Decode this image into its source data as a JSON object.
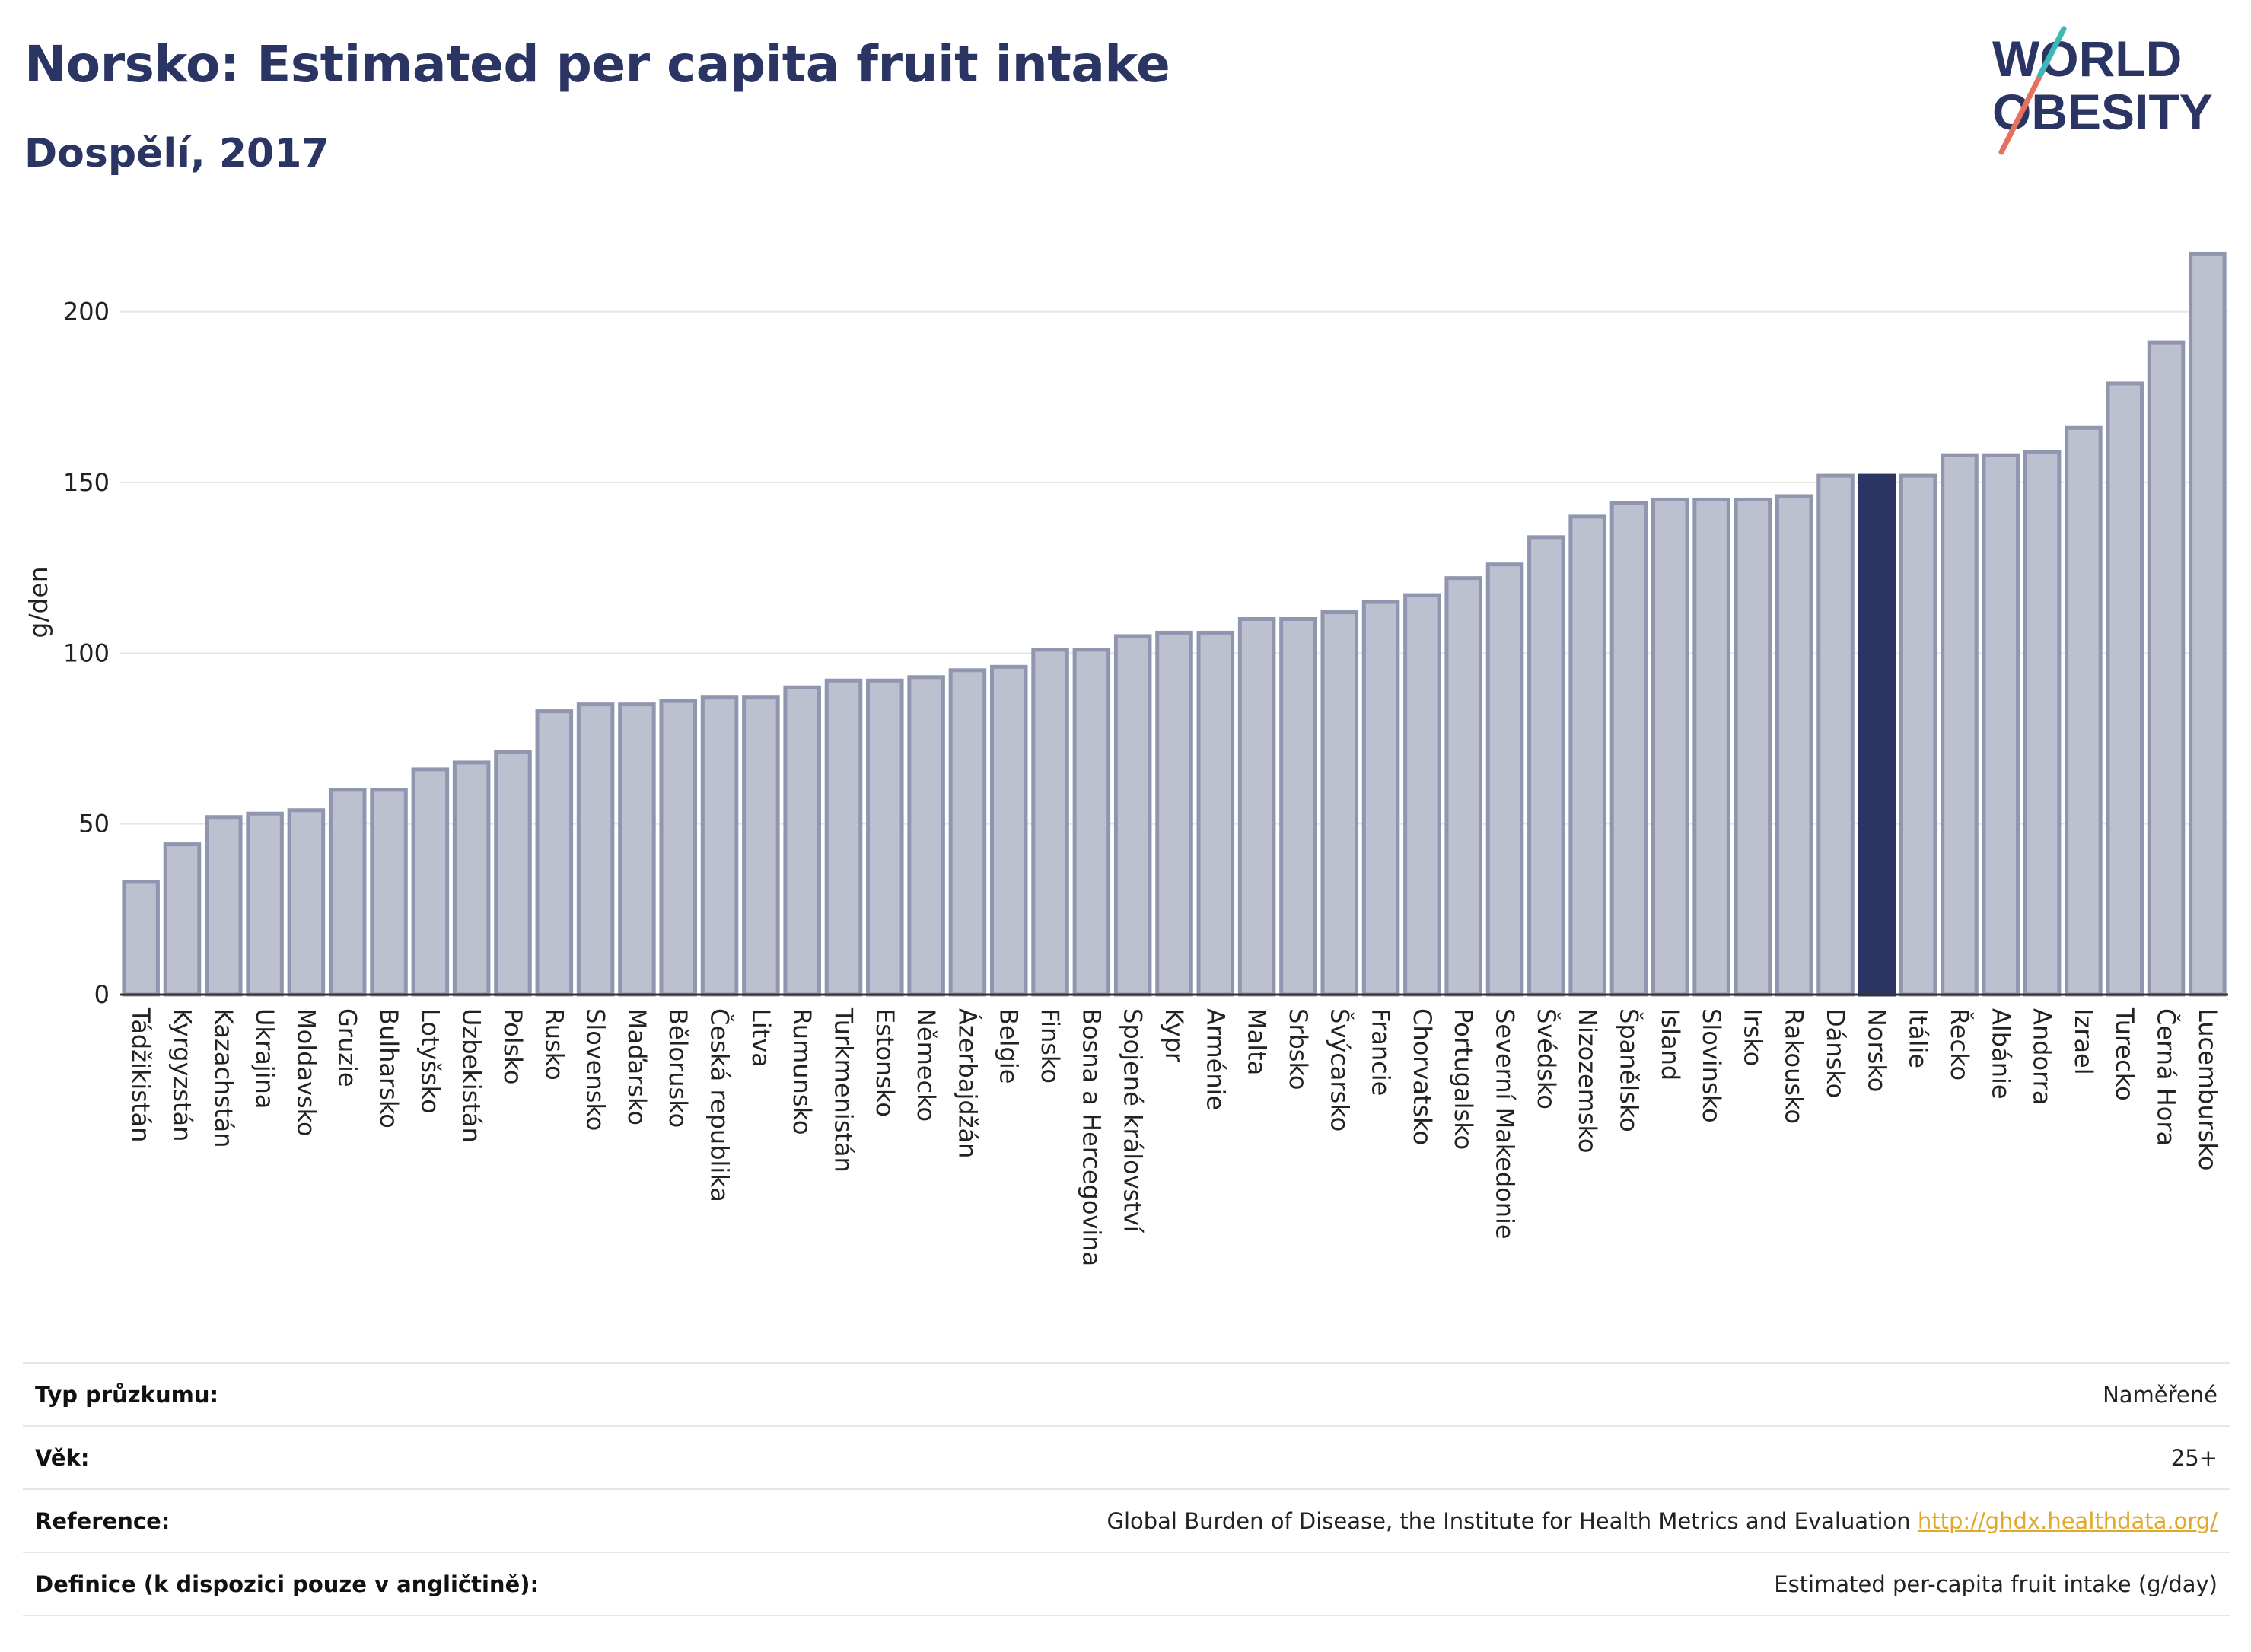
{
  "header": {
    "title": "Norsko: Estimated per capita fruit intake",
    "subtitle": "Dospělí, 2017"
  },
  "logo": {
    "line1": "WORLD",
    "line2": "OBESITY",
    "letter_o": "O"
  },
  "chart_data": {
    "type": "bar",
    "title": "Norsko: Estimated per capita fruit intake",
    "subtitle": "Dospělí, 2017",
    "xlabel": "",
    "ylabel": "g/den",
    "ylim": [
      0,
      220
    ],
    "yticks": [
      0,
      50,
      100,
      150,
      200
    ],
    "grid": true,
    "highlight": "Norsko",
    "colors": {
      "bar": "#bcc0cf",
      "bar_border": "#9096b0",
      "highlight": "#2a3563",
      "grid": "#e6e6e6",
      "axis": "#333333"
    },
    "categories": [
      "Tádžikistán",
      "Kyrgyzstán",
      "Kazachstán",
      "Ukrajina",
      "Moldavsko",
      "Gruzie",
      "Bulharsko",
      "Lotyšsko",
      "Uzbekistán",
      "Polsko",
      "Rusko",
      "Slovensko",
      "Maďarsko",
      "Bělorusko",
      "Česká republika",
      "Litva",
      "Rumunsko",
      "Turkmenistán",
      "Estonsko",
      "Německo",
      "Ázerbajdžán",
      "Belgie",
      "Finsko",
      "Bosna a Hercegovina",
      "Spojené království",
      "Kypr",
      "Arménie",
      "Malta",
      "Srbsko",
      "Švýcarsko",
      "Francie",
      "Chorvatsko",
      "Portugalsko",
      "Severní Makedonie",
      "Švédsko",
      "Nizozemsko",
      "Španělsko",
      "Island",
      "Slovinsko",
      "Irsko",
      "Rakousko",
      "Dánsko",
      "Norsko",
      "Itálie",
      "Řecko",
      "Albánie",
      "Andorra",
      "Izrael",
      "Turecko",
      "Černá Hora",
      "Lucembursko"
    ],
    "values": [
      33,
      44,
      52,
      53,
      54,
      60,
      60,
      66,
      68,
      71,
      83,
      85,
      85,
      86,
      87,
      87,
      90,
      92,
      92,
      93,
      95,
      96,
      101,
      101,
      105,
      106,
      106,
      110,
      110,
      112,
      115,
      117,
      122,
      126,
      134,
      140,
      144,
      145,
      145,
      145,
      146,
      152,
      152,
      152,
      158,
      158,
      159,
      166,
      179,
      191,
      217
    ]
  },
  "info": {
    "rows": [
      {
        "label": "Typ průzkumu:",
        "value": "Naměřené"
      },
      {
        "label": "Věk:",
        "value": "25+"
      },
      {
        "label": "Reference:",
        "value": "Global Burden of Disease, the Institute for Health Metrics and Evaluation",
        "link": "http://ghdx.healthdata.org/"
      },
      {
        "label": "Definice (k dispozici pouze v angličtině):",
        "value": "Estimated per-capita fruit intake (g/day)"
      }
    ]
  }
}
